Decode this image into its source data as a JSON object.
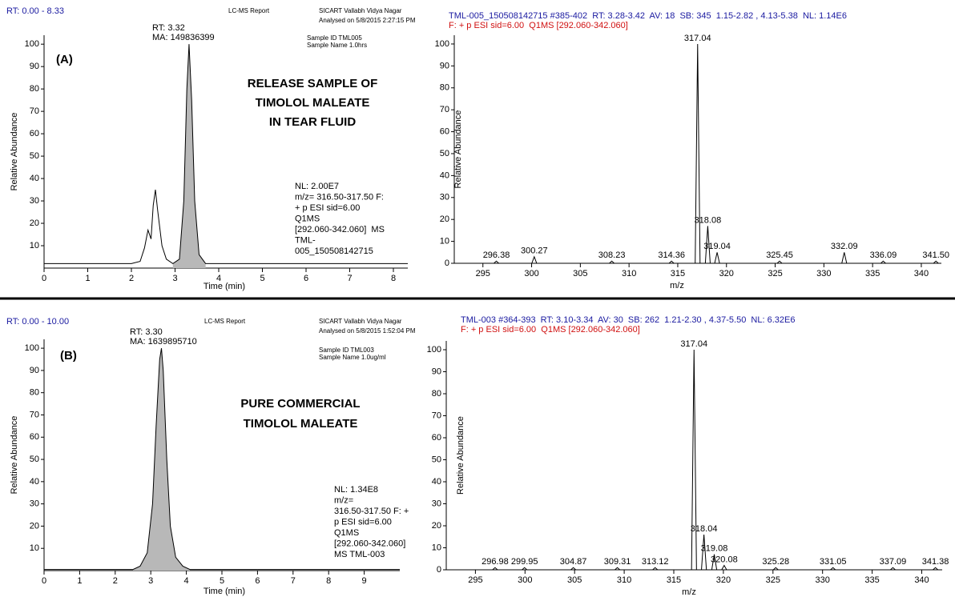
{
  "chart_data": [
    {
      "type": "line",
      "range_label": "RT: 0.00 - 8.33",
      "report": "LC-MS Report",
      "lab": "SICART Vallabh Vidya Nagar",
      "analysed": "Analysed on 5/8/2015 2:27:15 PM",
      "sample_id": "Sample ID TML005",
      "sample_name": "Sample Name 1.0hrs",
      "label": "(A)",
      "annotation": [
        "RELEASE SAMPLE OF",
        "TIMOLOL MALEATE",
        "IN TEAR FLUID"
      ],
      "peak_annotation": [
        "RT: 3.32",
        "MA: 149836399"
      ],
      "notes": [
        "NL: 2.00E7",
        "m/z= 316.50-317.50 F:",
        "+ p ESI sid=6.00",
        "Q1MS",
        "[292.060-342.060]  MS",
        "TML-",
        "005_150508142715"
      ],
      "xlabel": "Time (min)",
      "ylabel": "Relative Abundance",
      "color": "#000000",
      "x": [
        0,
        0.5,
        1,
        1.5,
        2,
        2.2,
        2.3,
        2.38,
        2.45,
        2.5,
        2.55,
        2.6,
        2.7,
        2.8,
        2.95,
        3.1,
        3.2,
        3.27,
        3.32,
        3.38,
        3.45,
        3.55,
        3.7,
        4,
        5,
        6,
        7,
        8,
        8.33
      ],
      "values": [
        2,
        2,
        2,
        2,
        2,
        3,
        9,
        17,
        13,
        28,
        35,
        26,
        10,
        4,
        2,
        4,
        30,
        80,
        100,
        75,
        30,
        6,
        2,
        2,
        2,
        2,
        2,
        2,
        2
      ],
      "xlim": [
        0,
        8.33
      ],
      "xticks": [
        0,
        1,
        2,
        3,
        4,
        5,
        6,
        7,
        8
      ],
      "ylim": [
        0,
        104
      ],
      "yticks": [
        10,
        20,
        30,
        40,
        50,
        60,
        70,
        80,
        90,
        100
      ]
    },
    {
      "type": "bar",
      "title": [
        "TML-005_150508142715 #385-402  RT: 3.28-3.42  AV: 18  SB: 345  1.15-2.82 , 4.13-5.38  NL: 1.14E6",
        "F: + p ESI sid=6.00  Q1MS [292.060-342.060]"
      ],
      "xlabel": "m/z",
      "ylabel": "Relative Abundance",
      "color": "#000000",
      "x": [
        296.38,
        300.27,
        308.23,
        314.36,
        317.04,
        318.08,
        319.04,
        325.45,
        332.09,
        336.09,
        341.5
      ],
      "x_labels": [
        "296.38",
        "300.27",
        "308.23",
        "314.36",
        "317.04",
        "318.08",
        "319.04",
        "325.45",
        "332.09",
        "336.09",
        "341.50"
      ],
      "values": [
        1,
        3,
        1,
        1,
        100,
        17,
        5,
        1,
        5,
        1,
        1
      ],
      "xlim": [
        292.06,
        342.06
      ],
      "xticks": [
        295,
        300,
        305,
        310,
        315,
        320,
        325,
        330,
        335,
        340
      ],
      "ylim": [
        0,
        104
      ],
      "yticks": [
        0,
        10,
        20,
        30,
        40,
        50,
        60,
        70,
        80,
        90,
        100
      ]
    },
    {
      "type": "line",
      "range_label": "RT: 0.00 - 10.00",
      "report": "LC-MS Report",
      "lab": "SICART Vallabh Vidya Nagar",
      "analysed": "Analysed on 5/8/2015 1:52:04 PM",
      "sample_id": "Sample ID TML003",
      "sample_name": "Sample Name 1.0ug/ml",
      "label": "(B)",
      "annotation": [
        "PURE COMMERCIAL",
        "TIMOLOL MALEATE"
      ],
      "peak_annotation": [
        "RT: 3.30",
        "MA: 1639895710"
      ],
      "notes": [
        "NL: 1.34E8",
        "m/z=",
        "316.50-317.50 F: +",
        "p ESI sid=6.00",
        "Q1MS",
        "[292.060-342.060]",
        "MS TML-003"
      ],
      "xlabel": "Time (min)",
      "ylabel": "Relative Abundance",
      "color": "#000000",
      "x": [
        0,
        1,
        2,
        2.5,
        2.7,
        2.9,
        3.05,
        3.15,
        3.25,
        3.3,
        3.35,
        3.45,
        3.55,
        3.7,
        3.9,
        4.1,
        5,
        6,
        7,
        8,
        9,
        10
      ],
      "values": [
        0.5,
        0.5,
        0.5,
        0.5,
        2,
        8,
        30,
        65,
        95,
        100,
        90,
        50,
        20,
        6,
        2,
        0.5,
        0.5,
        0.5,
        0.5,
        0.5,
        0.5,
        0.5
      ],
      "xlim": [
        0,
        10
      ],
      "xticks": [
        0,
        1,
        2,
        3,
        4,
        5,
        6,
        7,
        8,
        9
      ],
      "ylim": [
        0,
        104
      ],
      "yticks": [
        10,
        20,
        30,
        40,
        50,
        60,
        70,
        80,
        90,
        100
      ]
    },
    {
      "type": "bar",
      "title": [
        "TML-003 #364-393  RT: 3.10-3.34  AV: 30  SB: 262  1.21-2.30 , 4.37-5.50  NL: 6.32E6",
        "F: + p ESI sid=6.00  Q1MS [292.060-342.060]"
      ],
      "xlabel": "m/z",
      "ylabel": "Relative Abundance",
      "color": "#000000",
      "x": [
        296.98,
        299.95,
        304.87,
        309.31,
        313.12,
        317.04,
        318.04,
        319.08,
        320.08,
        325.28,
        331.05,
        337.09,
        341.38
      ],
      "x_labels": [
        "296.98",
        "299.95",
        "304.87",
        "309.31",
        "313.12",
        "317.04",
        "318.04",
        "319.08",
        "320.08",
        "325.28",
        "331.05",
        "337.09",
        "341.38"
      ],
      "values": [
        1,
        1,
        1,
        1,
        1,
        100,
        16,
        7,
        2,
        1,
        1,
        1,
        1
      ],
      "xlim": [
        292.06,
        342.06
      ],
      "xticks": [
        295,
        300,
        305,
        310,
        315,
        320,
        325,
        330,
        335,
        340
      ],
      "ylim": [
        0,
        104
      ],
      "yticks": [
        0,
        10,
        20,
        30,
        40,
        50,
        60,
        70,
        80,
        90,
        100
      ]
    }
  ]
}
